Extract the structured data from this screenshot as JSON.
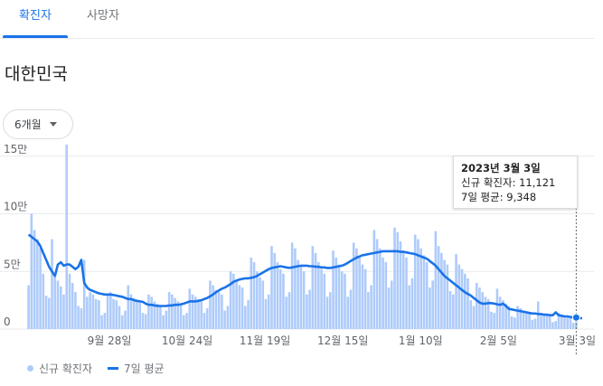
{
  "tabs": [
    {
      "label": "확진자",
      "active": true
    },
    {
      "label": "사망자",
      "active": false
    }
  ],
  "region": "대한민국",
  "period_select": {
    "value": "6개월"
  },
  "tooltip": {
    "date": "2023년 3월 3일",
    "new_cases_label": "신규 확진자",
    "new_cases_value": "11,121",
    "avg_label": "7일 평균",
    "avg_value": "9,348"
  },
  "legend": {
    "bars_label": "신규 확진자",
    "line_label": "7일 평균"
  },
  "colors": {
    "bar": "#aecbfa",
    "line": "#1a73e8",
    "accent": "#1a73e8"
  },
  "chart_data": {
    "type": "bar",
    "x_start": "2022-09-01",
    "x_end": "2023-03-03",
    "y_ticks": [
      {
        "value": 0,
        "label": "0"
      },
      {
        "value": 50000,
        "label": "5만"
      },
      {
        "value": 100000,
        "label": "10만"
      },
      {
        "value": 150000,
        "label": "15만"
      }
    ],
    "x_ticks": [
      {
        "date": "2022-09-28",
        "label": "9월 28일"
      },
      {
        "date": "2022-10-24",
        "label": "10월 24일"
      },
      {
        "date": "2022-11-19",
        "label": "11월 19일"
      },
      {
        "date": "2022-12-15",
        "label": "12월 15일"
      },
      {
        "date": "2023-01-10",
        "label": "1월 10일"
      },
      {
        "date": "2023-02-05",
        "label": "2월 5일"
      },
      {
        "date": "2023-03-03",
        "label": "3월 3일"
      }
    ],
    "ylim": [
      0,
      160000
    ],
    "series": [
      {
        "name": "신규 확진자",
        "values": [
          38000,
          100000,
          86000,
          78000,
          70000,
          48000,
          29000,
          27000,
          78000,
          45000,
          42000,
          37000,
          30000,
          163000,
          48000,
          40000,
          32000,
          20000,
          18000,
          60000,
          28000,
          32000,
          30000,
          26000,
          25000,
          12000,
          14000,
          30000,
          32000,
          26000,
          25000,
          20000,
          12000,
          16000,
          38000,
          30000,
          27000,
          24000,
          23000,
          14000,
          13000,
          30000,
          28000,
          24000,
          22000,
          20000,
          12000,
          16000,
          32000,
          30000,
          27000,
          24000,
          22000,
          12000,
          14000,
          35000,
          30000,
          28000,
          26000,
          24000,
          14000,
          18000,
          42000,
          38000,
          34000,
          32000,
          30000,
          16000,
          20000,
          50000,
          48000,
          42000,
          38000,
          36000,
          20000,
          25000,
          62000,
          58000,
          50000,
          45000,
          42000,
          26000,
          30000,
          72000,
          66000,
          58000,
          52000,
          48000,
          28000,
          32000,
          75000,
          70000,
          60000,
          55000,
          50000,
          30000,
          34000,
          72000,
          66000,
          58000,
          52000,
          48000,
          28000,
          32000,
          68000,
          62000,
          56000,
          50000,
          48000,
          28000,
          34000,
          75000,
          70000,
          62000,
          56000,
          52000,
          32000,
          38000,
          86000,
          78000,
          70000,
          62000,
          58000,
          36000,
          42000,
          88000,
          84000,
          76000,
          68000,
          62000,
          38000,
          44000,
          82000,
          78000,
          70000,
          64000,
          58000,
          36000,
          42000,
          85000,
          72000,
          66000,
          60000,
          56000,
          33000,
          30000,
          65000,
          56000,
          52000,
          48000,
          44000,
          25000,
          20000,
          40000,
          36000,
          32000,
          28000,
          26000,
          15000,
          14000,
          35000,
          28000,
          25000,
          22000,
          20000,
          11000,
          10000,
          20000,
          18000,
          16000,
          15000,
          14000,
          8000,
          9000,
          24000,
          14000,
          13000,
          12000,
          11000,
          6000,
          7000,
          14000,
          12000,
          11000,
          10000,
          9500,
          5500,
          11121
        ]
      },
      {
        "name": "7일 평균",
        "values": [
          82000,
          80000,
          78000,
          76000,
          72000,
          66000,
          60000,
          54000,
          50000,
          46000,
          56000,
          58000,
          55000,
          56000,
          56000,
          54000,
          52000,
          54000,
          60000,
          40000,
          36000,
          34000,
          33000,
          32000,
          31000,
          30500,
          30000,
          30000,
          30000,
          29500,
          29000,
          28500,
          28000,
          27000,
          26000,
          26000,
          25000,
          24500,
          24000,
          23500,
          22000,
          21000,
          21000,
          20500,
          20000,
          20000,
          20000,
          20000,
          20500,
          20500,
          21000,
          21000,
          21500,
          22000,
          23000,
          24000,
          24000,
          24000,
          24500,
          25000,
          26000,
          27000,
          28500,
          30000,
          32000,
          33500,
          35000,
          36000,
          37500,
          39000,
          41000,
          42000,
          43000,
          43500,
          44000,
          44000,
          44500,
          45000,
          46000,
          47500,
          49000,
          50500,
          52000,
          53000,
          53500,
          54000,
          54500,
          54000,
          53500,
          53000,
          53500,
          54000,
          54500,
          55000,
          55000,
          55000,
          54500,
          54500,
          54000,
          54000,
          53500,
          53500,
          53000,
          53000,
          53500,
          54000,
          54500,
          55000,
          56000,
          57500,
          59000,
          60500,
          62000,
          63000,
          64000,
          64500,
          65000,
          65500,
          66000,
          66500,
          67000,
          67500,
          67500,
          67500,
          67500,
          67500,
          67500,
          67000,
          67000,
          66500,
          66000,
          65500,
          65000,
          64000,
          63000,
          62000,
          61000,
          59000,
          57000,
          55000,
          52000,
          49000,
          46000,
          44000,
          42000,
          40000,
          38000,
          36000,
          34000,
          32000,
          30500,
          29000,
          27000,
          25000,
          23000,
          22000,
          22000,
          22500,
          22500,
          22000,
          21500,
          21000,
          22000,
          20000,
          17500,
          17000,
          16500,
          16000,
          15500,
          15000,
          14500,
          14000,
          13500,
          13500,
          13000,
          13000,
          12500,
          12500,
          12000,
          12000,
          14500,
          12000,
          11500,
          11000,
          11000,
          10500,
          10000,
          10000,
          9500,
          9348
        ]
      }
    ]
  }
}
